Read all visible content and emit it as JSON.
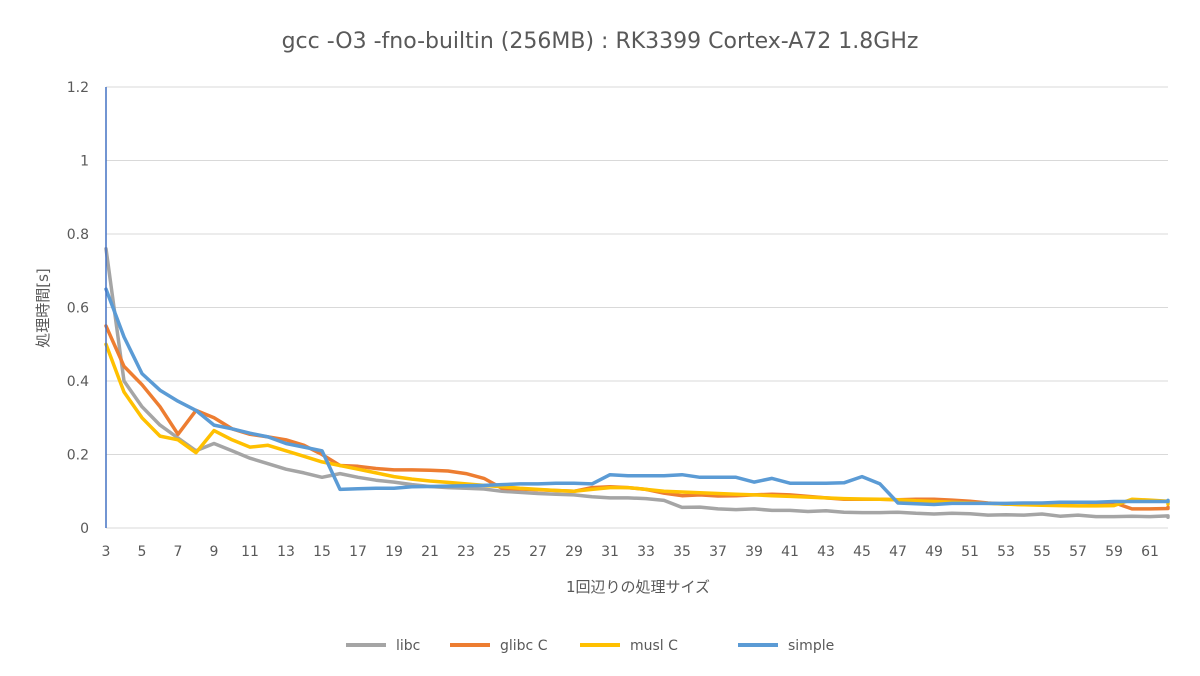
{
  "chart_data": {
    "type": "line",
    "title": "gcc -O3 -fno-builtin (256MB) : RK3399 Cortex-A72 1.8GHz",
    "xlabel": "1回辺りの処理サイズ",
    "ylabel": "処理時間[s]",
    "ylim": [
      0,
      1.2
    ],
    "yticks": [
      "0",
      "0.2",
      "0.4",
      "0.6",
      "0.8",
      "1",
      "1.2"
    ],
    "grid": true,
    "legend_position": "bottom",
    "x_start": 3,
    "x_end": 62,
    "xtick_labels": [
      "3",
      "5",
      "7",
      "9",
      "11",
      "13",
      "15",
      "17",
      "19",
      "21",
      "23",
      "25",
      "27",
      "29",
      "31",
      "33",
      "35",
      "37",
      "39",
      "41",
      "43",
      "45",
      "47",
      "49",
      "51",
      "53",
      "55",
      "57",
      "59",
      "61"
    ],
    "series": [
      {
        "name": "libc",
        "color": "#a5a5a5",
        "values": [
          0.76,
          0.4,
          0.33,
          0.28,
          0.245,
          0.21,
          0.23,
          0.21,
          0.19,
          0.175,
          0.16,
          0.15,
          0.138,
          0.148,
          0.138,
          0.13,
          0.125,
          0.118,
          0.113,
          0.11,
          0.108,
          0.106,
          0.1,
          0.097,
          0.094,
          0.092,
          0.09,
          0.085,
          0.082,
          0.082,
          0.08,
          0.075,
          0.056,
          0.057,
          0.052,
          0.05,
          0.052,
          0.048,
          0.048,
          0.045,
          0.047,
          0.043,
          0.042,
          0.042,
          0.043,
          0.04,
          0.038,
          0.04,
          0.039,
          0.035,
          0.036,
          0.035,
          0.038,
          0.032,
          0.035,
          0.031,
          0.031,
          0.032,
          0.031,
          0.033,
          0.029,
          0.029,
          0.03,
          0.029
        ]
      },
      {
        "name": "glibc C",
        "color": "#ed7d31",
        "values": [
          0.55,
          0.44,
          0.39,
          0.33,
          0.255,
          0.32,
          0.3,
          0.27,
          0.255,
          0.248,
          0.24,
          0.225,
          0.2,
          0.17,
          0.168,
          0.162,
          0.158,
          0.158,
          0.157,
          0.155,
          0.148,
          0.135,
          0.108,
          0.106,
          0.104,
          0.102,
          0.1,
          0.11,
          0.112,
          0.11,
          0.105,
          0.095,
          0.088,
          0.09,
          0.087,
          0.088,
          0.09,
          0.092,
          0.09,
          0.086,
          0.082,
          0.078,
          0.078,
          0.078,
          0.077,
          0.078,
          0.078,
          0.076,
          0.073,
          0.068,
          0.065,
          0.064,
          0.065,
          0.067,
          0.07,
          0.068,
          0.069,
          0.052,
          0.052,
          0.053,
          0.054,
          0.055,
          0.057,
          0.057
        ]
      },
      {
        "name": "musl C",
        "color": "#ffc000",
        "values": [
          0.5,
          0.37,
          0.3,
          0.25,
          0.24,
          0.205,
          0.265,
          0.24,
          0.22,
          0.225,
          0.21,
          0.195,
          0.18,
          0.17,
          0.16,
          0.15,
          0.14,
          0.133,
          0.128,
          0.124,
          0.12,
          0.116,
          0.112,
          0.108,
          0.105,
          0.102,
          0.1,
          0.105,
          0.11,
          0.11,
          0.105,
          0.1,
          0.098,
          0.096,
          0.094,
          0.092,
          0.09,
          0.088,
          0.086,
          0.084,
          0.082,
          0.08,
          0.079,
          0.078,
          0.077,
          0.074,
          0.072,
          0.07,
          0.068,
          0.067,
          0.065,
          0.063,
          0.062,
          0.061,
          0.06,
          0.06,
          0.061,
          0.078,
          0.076,
          0.073,
          0.07,
          0.068,
          0.066,
          0.065
        ]
      },
      {
        "name": "simple",
        "color": "#5b9bd5",
        "values": [
          0.65,
          0.52,
          0.42,
          0.375,
          0.345,
          0.32,
          0.28,
          0.27,
          0.258,
          0.248,
          0.23,
          0.22,
          0.21,
          0.105,
          0.107,
          0.108,
          0.108,
          0.112,
          0.113,
          0.114,
          0.115,
          0.116,
          0.118,
          0.12,
          0.12,
          0.122,
          0.122,
          0.12,
          0.145,
          0.142,
          0.142,
          0.142,
          0.145,
          0.138,
          0.138,
          0.138,
          0.125,
          0.135,
          0.122,
          0.122,
          0.122,
          0.123,
          0.14,
          0.12,
          0.068,
          0.066,
          0.064,
          0.067,
          0.067,
          0.067,
          0.067,
          0.068,
          0.068,
          0.07,
          0.07,
          0.07,
          0.072,
          0.072,
          0.072,
          0.072,
          0.072,
          0.072,
          0.072,
          0.075
        ]
      }
    ]
  }
}
